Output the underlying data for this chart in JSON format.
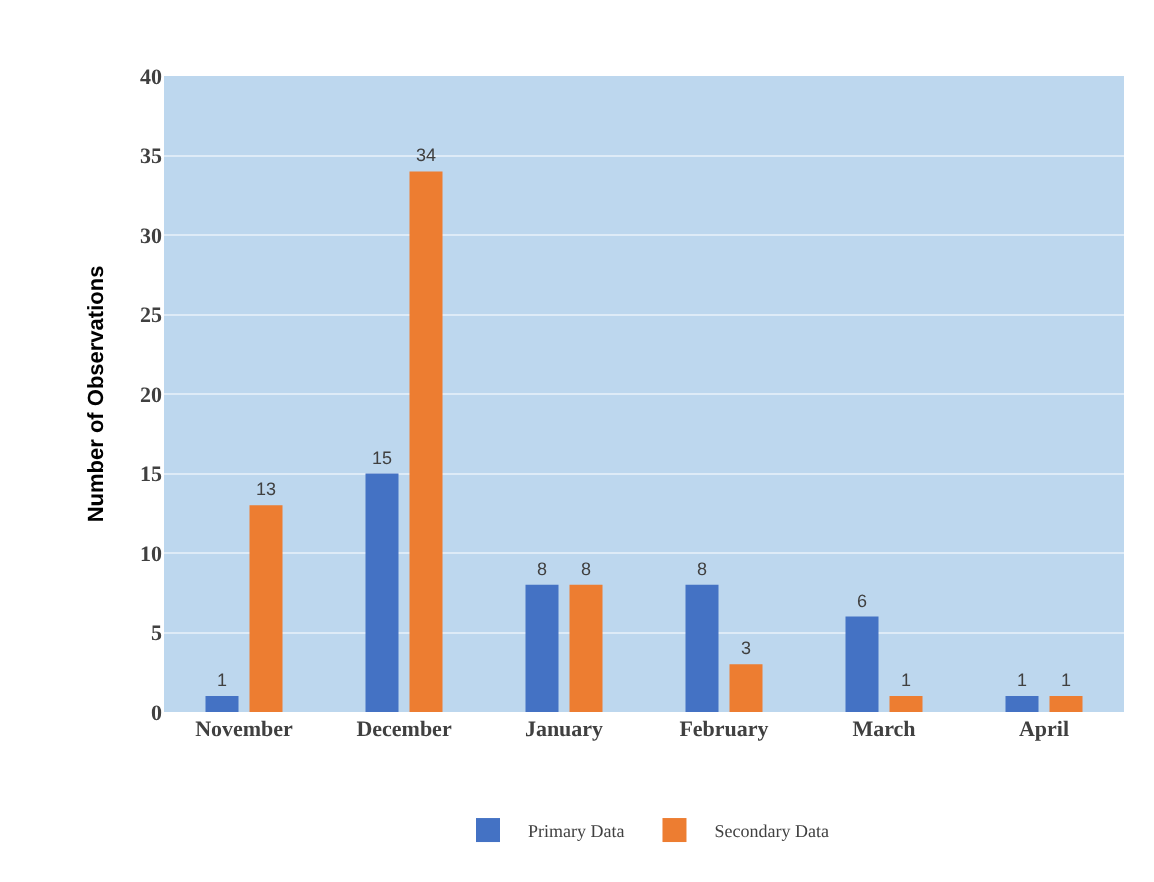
{
  "chart_data": {
    "type": "bar",
    "ylabel": "Number of Observations",
    "categories": [
      "November",
      "December",
      "January",
      "February",
      "March",
      "April"
    ],
    "series": [
      {
        "name": "Primary Data",
        "color": "#4472c4",
        "values": [
          1,
          15,
          8,
          8,
          6,
          1
        ]
      },
      {
        "name": "Secondary Data",
        "color": "#ed7d31",
        "values": [
          13,
          34,
          8,
          3,
          1,
          1
        ]
      }
    ],
    "ylim": [
      0,
      40
    ],
    "yticks": [
      0,
      5,
      10,
      15,
      20,
      25,
      30,
      35,
      40
    ],
    "grid": "y",
    "legend": "bottom",
    "data_labels": true
  }
}
